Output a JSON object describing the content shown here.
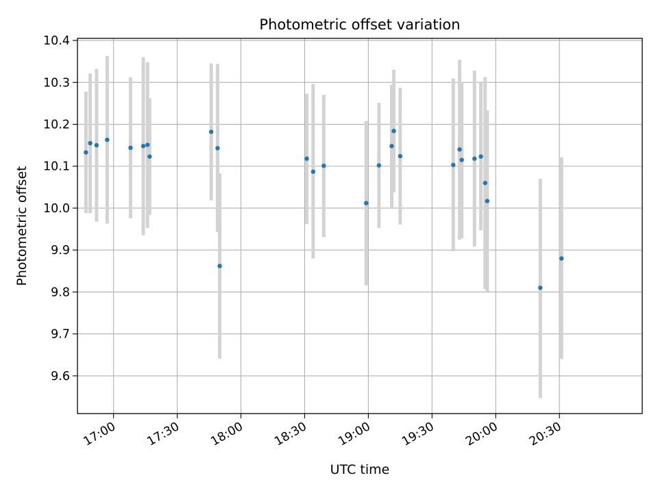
{
  "chart_data": {
    "type": "scatter",
    "title": "Photometric offset variation",
    "xlabel": "UTC time",
    "ylabel": "Photometric offset",
    "x_ticks": [
      "17:00",
      "17:30",
      "18:00",
      "18:30",
      "19:00",
      "19:30",
      "20:00",
      "20:30"
    ],
    "y_ticks": [
      "9.6",
      "9.7",
      "9.8",
      "9.9",
      "10.0",
      "10.1",
      "10.2",
      "10.3",
      "10.4"
    ],
    "xlim": [
      "16:43",
      "21:09"
    ],
    "ylim": [
      9.51,
      10.405
    ],
    "grid": true,
    "point_color": "#1f77b4",
    "errorbar_color": "#d3d3d3",
    "points": [
      {
        "x": "16:47",
        "y": 10.133,
        "lo": 9.988,
        "hi": 10.278
      },
      {
        "x": "16:49",
        "y": 10.155,
        "lo": 9.988,
        "hi": 10.321
      },
      {
        "x": "16:52",
        "y": 10.15,
        "lo": 9.968,
        "hi": 10.332
      },
      {
        "x": "16:57",
        "y": 10.163,
        "lo": 9.963,
        "hi": 10.363
      },
      {
        "x": "17:08",
        "y": 10.144,
        "lo": 9.976,
        "hi": 10.312
      },
      {
        "x": "17:14",
        "y": 10.148,
        "lo": 9.935,
        "hi": 10.36
      },
      {
        "x": "17:16",
        "y": 10.151,
        "lo": 9.953,
        "hi": 10.348
      },
      {
        "x": "17:17",
        "y": 10.123,
        "lo": 9.984,
        "hi": 10.262
      },
      {
        "x": "17:46",
        "y": 10.182,
        "lo": 10.019,
        "hi": 10.345
      },
      {
        "x": "17:49",
        "y": 10.143,
        "lo": 9.943,
        "hi": 10.344
      },
      {
        "x": "17:50",
        "y": 9.862,
        "lo": 9.641,
        "hi": 10.083
      },
      {
        "x": "18:31",
        "y": 10.118,
        "lo": 9.962,
        "hi": 10.273
      },
      {
        "x": "18:34",
        "y": 10.087,
        "lo": 9.88,
        "hi": 10.296
      },
      {
        "x": "18:39",
        "y": 10.101,
        "lo": 9.931,
        "hi": 10.27
      },
      {
        "x": "18:59",
        "y": 10.012,
        "lo": 9.816,
        "hi": 10.208
      },
      {
        "x": "19:05",
        "y": 10.102,
        "lo": 9.953,
        "hi": 10.251
      },
      {
        "x": "19:11",
        "y": 10.148,
        "lo": 10.0,
        "hi": 10.294
      },
      {
        "x": "19:12",
        "y": 10.184,
        "lo": 10.038,
        "hi": 10.33
      },
      {
        "x": "19:15",
        "y": 10.124,
        "lo": 9.961,
        "hi": 10.287
      },
      {
        "x": "19:40",
        "y": 10.103,
        "lo": 9.897,
        "hi": 10.309
      },
      {
        "x": "19:43",
        "y": 10.14,
        "lo": 9.925,
        "hi": 10.354
      },
      {
        "x": "19:44",
        "y": 10.115,
        "lo": 9.928,
        "hi": 10.3
      },
      {
        "x": "19:50",
        "y": 10.118,
        "lo": 9.908,
        "hi": 10.328
      },
      {
        "x": "19:53",
        "y": 10.123,
        "lo": 9.947,
        "hi": 10.299
      },
      {
        "x": "19:55",
        "y": 10.06,
        "lo": 9.807,
        "hi": 10.313
      },
      {
        "x": "19:56",
        "y": 10.017,
        "lo": 9.801,
        "hi": 10.233
      },
      {
        "x": "20:21",
        "y": 9.81,
        "lo": 9.547,
        "hi": 10.07
      },
      {
        "x": "20:31",
        "y": 9.88,
        "lo": 9.64,
        "hi": 10.121
      }
    ]
  }
}
